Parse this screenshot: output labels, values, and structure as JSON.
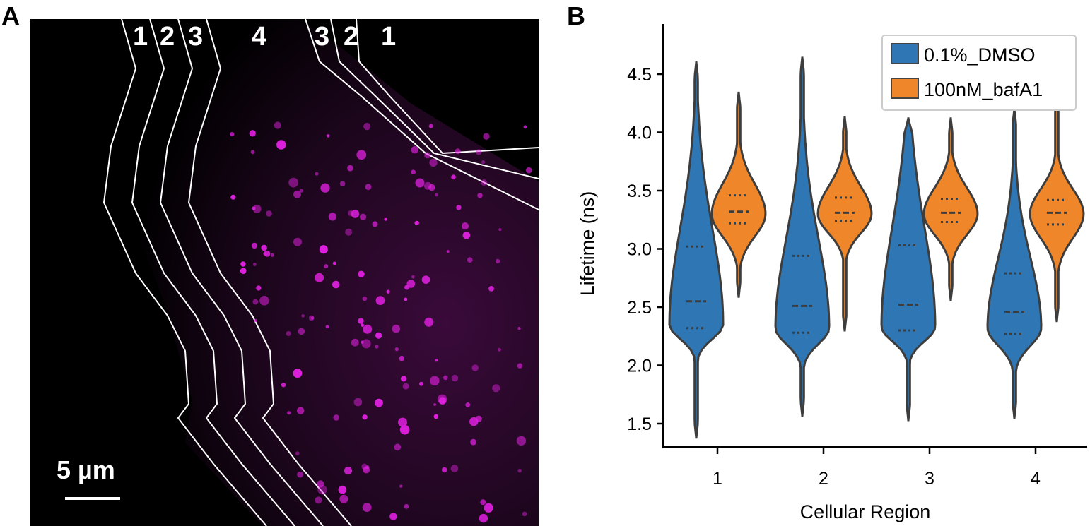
{
  "panels": {
    "a": "A",
    "b": "B"
  },
  "image_panel": {
    "region_labels_left": [
      "1",
      "2",
      "3",
      "4"
    ],
    "region_labels_right": [
      "3",
      "2",
      "1"
    ],
    "scale_bar_label": "5 µm",
    "stain_color": "#e020e0"
  },
  "chart_data": {
    "type": "violin",
    "xlabel": "Cellular Region",
    "ylabel": "Lifetime (ns)",
    "categories": [
      "1",
      "2",
      "3",
      "4"
    ],
    "ylim": [
      1.3,
      4.8
    ],
    "yticks": [
      "1.5",
      "2.0",
      "2.5",
      "3.0",
      "3.5",
      "4.0",
      "4.5"
    ],
    "legend_position": "top-right",
    "series": [
      {
        "name": "0.1%_DMSO",
        "color": "#2e77b4",
        "violins": [
          {
            "min": 1.38,
            "max": 4.6,
            "q1": 2.32,
            "median": 2.55,
            "q3": 3.02,
            "mode": 2.35
          },
          {
            "min": 1.57,
            "max": 4.64,
            "q1": 2.28,
            "median": 2.51,
            "q3": 2.94,
            "mode": 2.32
          },
          {
            "min": 1.53,
            "max": 4.12,
            "q1": 2.3,
            "median": 2.52,
            "q3": 3.03,
            "mode": 2.33
          },
          {
            "min": 1.55,
            "max": 4.2,
            "q1": 2.27,
            "median": 2.46,
            "q3": 2.79,
            "mode": 2.32
          }
        ]
      },
      {
        "name": "100nM_bafA1",
        "color": "#f0862a",
        "violins": [
          {
            "min": 2.59,
            "max": 4.34,
            "q1": 3.22,
            "median": 3.32,
            "q3": 3.46,
            "mode": 3.3
          },
          {
            "min": 2.3,
            "max": 4.13,
            "q1": 3.24,
            "median": 3.31,
            "q3": 3.44,
            "mode": 3.3
          },
          {
            "min": 2.56,
            "max": 4.12,
            "q1": 3.23,
            "median": 3.31,
            "q3": 3.43,
            "mode": 3.3
          },
          {
            "min": 2.38,
            "max": 4.7,
            "q1": 3.21,
            "median": 3.31,
            "q3": 3.42,
            "mode": 3.3
          }
        ]
      }
    ]
  }
}
